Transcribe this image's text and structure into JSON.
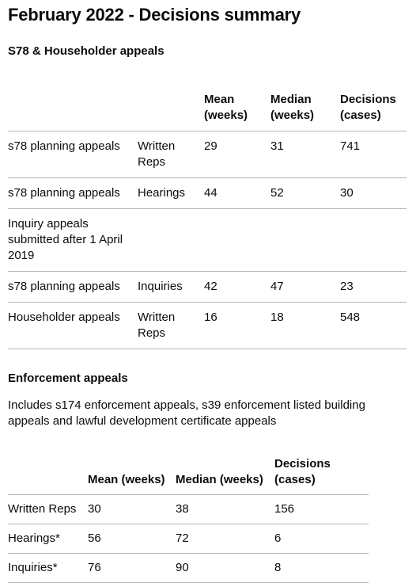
{
  "title": "February 2022 - Decisions summary",
  "s78": {
    "heading": "S78 & Householder appeals",
    "headers": {
      "mean": "Mean (weeks)",
      "median": "Median (weeks)",
      "decisions": "Decisions (cases)"
    },
    "rows": [
      {
        "type": "s78 planning appeals",
        "procedure": "Written Reps",
        "mean": "29",
        "median": "31",
        "decisions": "741"
      },
      {
        "type": "s78 planning appeals",
        "procedure": "Hearings",
        "mean": "44",
        "median": "52",
        "decisions": "30"
      },
      {
        "type": "Inquiry appeals submitted after 1 April 2019",
        "procedure": "",
        "mean": "",
        "median": "",
        "decisions": ""
      },
      {
        "type": "s78 planning appeals",
        "procedure": "Inquiries",
        "mean": "42",
        "median": "47",
        "decisions": "23"
      },
      {
        "type": "Householder appeals",
        "procedure": "Written Reps",
        "mean": "16",
        "median": "18",
        "decisions": "548"
      }
    ]
  },
  "enforcement": {
    "heading": "Enforcement appeals",
    "intro": "Includes s174 enforcement appeals, s39 enforcement listed building appeals and lawful development certificate appeals",
    "headers": {
      "mean": "Mean (weeks)",
      "median": "Median (weeks)",
      "decisions": "Decisions (cases)"
    },
    "rows": [
      {
        "procedure": "Written Reps",
        "mean": "30",
        "median": "38",
        "decisions": "156"
      },
      {
        "procedure": "Hearings*",
        "mean": "56",
        "median": "72",
        "decisions": "6"
      },
      {
        "procedure": "Inquiries*",
        "mean": "76",
        "median": "90",
        "decisions": "8"
      }
    ]
  }
}
